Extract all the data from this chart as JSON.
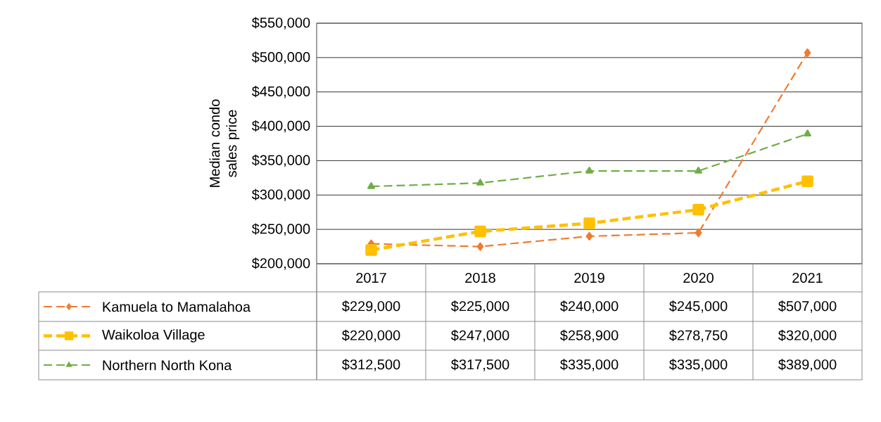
{
  "chart_data": {
    "type": "line",
    "ylabel": "Median condo sales price",
    "categories": [
      "2017",
      "2018",
      "2019",
      "2020",
      "2021"
    ],
    "series": [
      {
        "name": "Kamuela to Mamalahoa",
        "color": "#ed7d31",
        "marker": "diamond",
        "line_style": "dashed",
        "values": [
          229000,
          225000,
          240000,
          245000,
          507000
        ],
        "value_labels": [
          "$229,000",
          "$225,000",
          "$240,000",
          "$245,000",
          "$507,000"
        ]
      },
      {
        "name": "Waikoloa Village",
        "color": "#ffc000",
        "marker": "square",
        "line_style": "dashed",
        "values": [
          220000,
          247000,
          258900,
          278750,
          320000
        ],
        "value_labels": [
          "$220,000",
          "$247,000",
          "$258,900",
          "$278,750",
          "$320,000"
        ]
      },
      {
        "name": "Northern North Kona",
        "color": "#70ad47",
        "marker": "triangle",
        "line_style": "dashed",
        "values": [
          312500,
          317500,
          335000,
          335000,
          389000
        ],
        "value_labels": [
          "$312,500",
          "$317,500",
          "$335,000",
          "$335,000",
          "$389,000"
        ]
      }
    ],
    "ylim": [
      200000,
      550000
    ],
    "yticks": [
      {
        "value": 200000,
        "label": "$200,000"
      },
      {
        "value": 250000,
        "label": "$250,000"
      },
      {
        "value": 300000,
        "label": "$300,000"
      },
      {
        "value": 350000,
        "label": "$350,000"
      },
      {
        "value": 400000,
        "label": "$400,000"
      },
      {
        "value": 450000,
        "label": "$450,000"
      },
      {
        "value": 500000,
        "label": "$500,000"
      },
      {
        "value": 550000,
        "label": "$550,000"
      }
    ],
    "grid": "y",
    "legend": "bottom"
  }
}
